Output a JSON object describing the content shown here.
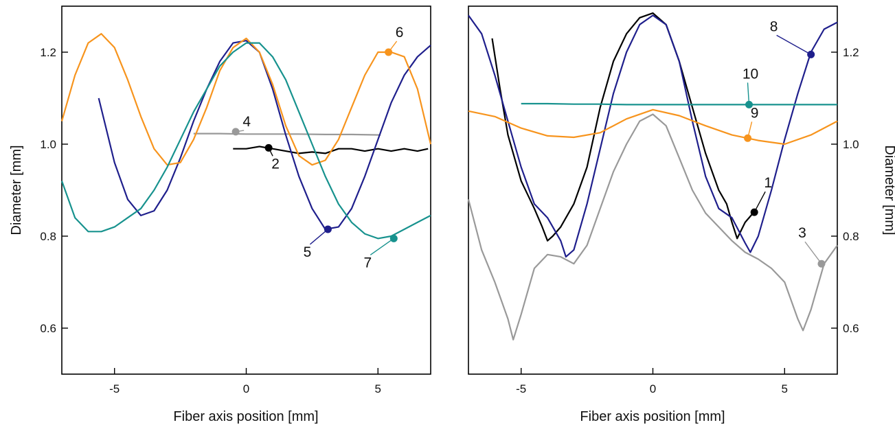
{
  "chart_data": [
    {
      "type": "line",
      "panel": "left",
      "xlabel": "Fiber axis position [mm]",
      "ylabel": "Diameter [mm]",
      "xlim": [
        -7,
        7
      ],
      "ylim": [
        0.5,
        1.3
      ],
      "xticks": [
        -5,
        0,
        5
      ],
      "xtick_labels": [
        "-5",
        "0",
        "5"
      ],
      "yticks": [
        0.6,
        0.8,
        1.0,
        1.2
      ],
      "ytick_labels": [
        "0.6",
        "0.8",
        "1.0",
        "1.2"
      ],
      "yaxis_side": "left",
      "grid": false,
      "series": [
        {
          "name": "2",
          "color": "#000000",
          "x": [
            -0.5,
            0,
            0.5,
            1,
            1.5,
            2,
            2.5,
            3,
            3.5,
            4,
            4.5,
            5,
            5.5,
            6,
            6.5,
            6.9
          ],
          "y": [
            0.99,
            0.99,
            0.995,
            0.99,
            0.985,
            0.98,
            0.983,
            0.98,
            0.99,
            0.99,
            0.985,
            0.99,
            0.985,
            0.99,
            0.985,
            0.99
          ],
          "label": "2",
          "marker": [
            0.85,
            0.992
          ]
        },
        {
          "name": "4",
          "color": "#999999",
          "x": [
            -2,
            -1,
            0,
            1,
            2,
            3,
            4,
            5.1
          ],
          "y": [
            1.023,
            1.023,
            1.022,
            1.022,
            1.022,
            1.021,
            1.021,
            1.02
          ],
          "label": "4",
          "marker": [
            -0.4,
            1.027
          ]
        },
        {
          "name": "5",
          "color": "#1f1f8c",
          "x": [
            -5.6,
            -5,
            -4.5,
            -4,
            -3.5,
            -3,
            -2.5,
            -2,
            -1.5,
            -1,
            -0.5,
            0,
            0.5,
            1,
            1.5,
            2,
            2.5,
            3,
            3.5,
            4,
            4.5,
            5,
            5.5,
            6,
            6.5,
            7
          ],
          "y": [
            1.1,
            0.96,
            0.88,
            0.845,
            0.855,
            0.9,
            0.97,
            1.05,
            1.12,
            1.18,
            1.22,
            1.225,
            1.2,
            1.12,
            1.02,
            0.93,
            0.86,
            0.815,
            0.82,
            0.86,
            0.93,
            1.01,
            1.09,
            1.15,
            1.19,
            1.215
          ],
          "label": "5",
          "marker": [
            3.1,
            0.815
          ]
        },
        {
          "name": "6",
          "color": "#f7941d",
          "x": [
            -7,
            -6.5,
            -6,
            -5.5,
            -5,
            -4.5,
            -4,
            -3.5,
            -3,
            -2.5,
            -2,
            -1.5,
            -1,
            -0.5,
            0,
            0.5,
            1,
            1.5,
            2,
            2.5,
            3,
            3.5,
            4,
            4.5,
            5,
            5.5,
            6,
            6.5,
            7
          ],
          "y": [
            1.05,
            1.15,
            1.22,
            1.24,
            1.21,
            1.14,
            1.06,
            0.99,
            0.955,
            0.96,
            1.01,
            1.08,
            1.16,
            1.21,
            1.23,
            1.2,
            1.13,
            1.04,
            0.975,
            0.955,
            0.965,
            1.01,
            1.08,
            1.15,
            1.2,
            1.2,
            1.19,
            1.12,
            1.0
          ],
          "label": "6",
          "marker": [
            5.4,
            1.2
          ]
        },
        {
          "name": "7",
          "color": "#17928e",
          "x": [
            -7,
            -6.5,
            -6,
            -5.5,
            -5,
            -4.5,
            -4,
            -3.5,
            -3,
            -2.5,
            -2,
            -1.5,
            -1,
            -0.5,
            0,
            0.5,
            1,
            1.5,
            2,
            2.5,
            3,
            3.5,
            4,
            4.5,
            5,
            5.5,
            6,
            6.5,
            7
          ],
          "y": [
            0.92,
            0.84,
            0.81,
            0.81,
            0.82,
            0.84,
            0.86,
            0.9,
            0.95,
            1.01,
            1.07,
            1.12,
            1.17,
            1.2,
            1.22,
            1.22,
            1.19,
            1.14,
            1.07,
            1.0,
            0.93,
            0.87,
            0.83,
            0.805,
            0.795,
            0.8,
            0.815,
            0.83,
            0.845
          ],
          "label": "7",
          "marker": [
            5.6,
            0.795
          ]
        }
      ]
    },
    {
      "type": "line",
      "panel": "right",
      "xlabel": "Fiber axis position [mm]",
      "ylabel": "Diameter [mm]",
      "xlim": [
        -7,
        7
      ],
      "ylim": [
        0.5,
        1.3
      ],
      "xticks": [
        -5,
        0,
        5
      ],
      "xtick_labels": [
        "-5",
        "0",
        "5"
      ],
      "yticks": [
        0.6,
        0.8,
        1.0,
        1.2
      ],
      "ytick_labels": [
        "0.6",
        "0.8",
        "1.0",
        "1.2"
      ],
      "yaxis_side": "right",
      "grid": false,
      "series": [
        {
          "name": "1",
          "color": "#000000",
          "x": [
            -6.1,
            -5.8,
            -5.5,
            -5,
            -4.5,
            -4.2,
            -4,
            -3.8,
            -3.5,
            -3,
            -2.5,
            -2,
            -1.5,
            -1,
            -0.5,
            0,
            0.5,
            1,
            1.5,
            2,
            2.5,
            2.8,
            3,
            3.2,
            3.5,
            3.8
          ],
          "y": [
            1.23,
            1.12,
            1.02,
            0.92,
            0.86,
            0.82,
            0.79,
            0.8,
            0.82,
            0.87,
            0.95,
            1.08,
            1.18,
            1.24,
            1.275,
            1.285,
            1.26,
            1.18,
            1.08,
            0.98,
            0.9,
            0.87,
            0.83,
            0.795,
            0.83,
            0.85
          ],
          "label": "1",
          "marker": [
            3.85,
            0.852
          ]
        },
        {
          "name": "3",
          "color": "#999999",
          "x": [
            -7,
            -6.5,
            -6,
            -5.5,
            -5.3,
            -5,
            -4.5,
            -4,
            -3.5,
            -3,
            -2.5,
            -2,
            -1.5,
            -1,
            -0.5,
            0,
            0.5,
            1,
            1.5,
            2,
            2.5,
            3,
            3.5,
            4,
            4.5,
            5,
            5.5,
            5.7,
            6,
            6.5,
            7
          ],
          "y": [
            0.88,
            0.77,
            0.7,
            0.62,
            0.575,
            0.63,
            0.73,
            0.76,
            0.755,
            0.74,
            0.78,
            0.86,
            0.94,
            1.0,
            1.05,
            1.065,
            1.04,
            0.97,
            0.9,
            0.85,
            0.82,
            0.79,
            0.765,
            0.75,
            0.73,
            0.7,
            0.62,
            0.595,
            0.64,
            0.74,
            0.78
          ],
          "label": "3",
          "marker": [
            6.4,
            0.74
          ]
        },
        {
          "name": "8",
          "color": "#1f1f8c",
          "x": [
            -7,
            -6.5,
            -6,
            -5.5,
            -5,
            -4.5,
            -4,
            -3.5,
            -3.3,
            -3,
            -2.5,
            -2,
            -1.5,
            -1,
            -0.5,
            0,
            0.5,
            1,
            1.5,
            2,
            2.5,
            3,
            3.5,
            3.7,
            4,
            4.5,
            5,
            5.5,
            6,
            6.5,
            7
          ],
          "y": [
            1.28,
            1.24,
            1.15,
            1.05,
            0.95,
            0.87,
            0.84,
            0.79,
            0.755,
            0.77,
            0.87,
            0.99,
            1.11,
            1.2,
            1.26,
            1.28,
            1.26,
            1.18,
            1.05,
            0.93,
            0.86,
            0.84,
            0.785,
            0.765,
            0.8,
            0.9,
            1.01,
            1.11,
            1.2,
            1.25,
            1.265
          ],
          "label": "8",
          "marker": [
            6.0,
            1.195
          ]
        },
        {
          "name": "9",
          "color": "#f7941d",
          "x": [
            -7,
            -6,
            -5,
            -4,
            -3,
            -2,
            -1,
            0,
            1,
            2,
            3,
            4,
            5,
            6,
            7
          ],
          "y": [
            1.072,
            1.06,
            1.035,
            1.018,
            1.015,
            1.025,
            1.055,
            1.075,
            1.062,
            1.04,
            1.02,
            1.008,
            1.0,
            1.02,
            1.05
          ],
          "label": "9",
          "marker": [
            3.6,
            1.013
          ]
        },
        {
          "name": "10",
          "color": "#17928e",
          "x": [
            -5,
            -4,
            -3,
            -2,
            -1,
            0,
            1,
            2,
            3,
            4,
            5,
            6,
            7
          ],
          "y": [
            1.088,
            1.088,
            1.087,
            1.087,
            1.086,
            1.086,
            1.086,
            1.086,
            1.086,
            1.086,
            1.086,
            1.086,
            1.086
          ],
          "label": "10",
          "marker": [
            3.65,
            1.086
          ]
        }
      ]
    }
  ]
}
